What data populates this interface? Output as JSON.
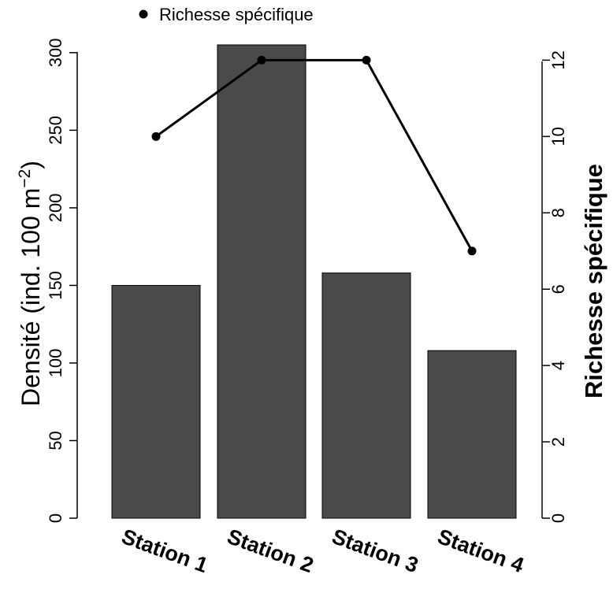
{
  "chart_data": {
    "type": "bar",
    "categories": [
      "Station 1",
      "Station 2",
      "Station 3",
      "Station 4"
    ],
    "bar_series": {
      "values": [
        150,
        305,
        158,
        108
      ],
      "color": "#4a4a4a",
      "axis": "left"
    },
    "line_series": {
      "name": "Richesse spécifique",
      "values": [
        10,
        12,
        12,
        7
      ],
      "color": "#000000",
      "axis": "right"
    },
    "ylabel_left_text": "Densité (ind. 100 m",
    "ylabel_left_exponent": "−2",
    "ylabel_left_close": ")",
    "ylabel_right": "Richesse spécifique",
    "ylim_left": [
      0,
      305
    ],
    "ylim_right": [
      0,
      12.4
    ],
    "yticks_left": [
      0,
      50,
      100,
      150,
      200,
      250,
      300
    ],
    "yticks_right": [
      0,
      2,
      4,
      6,
      8,
      10,
      12
    ],
    "legend_position": "top-left",
    "grid": false
  }
}
